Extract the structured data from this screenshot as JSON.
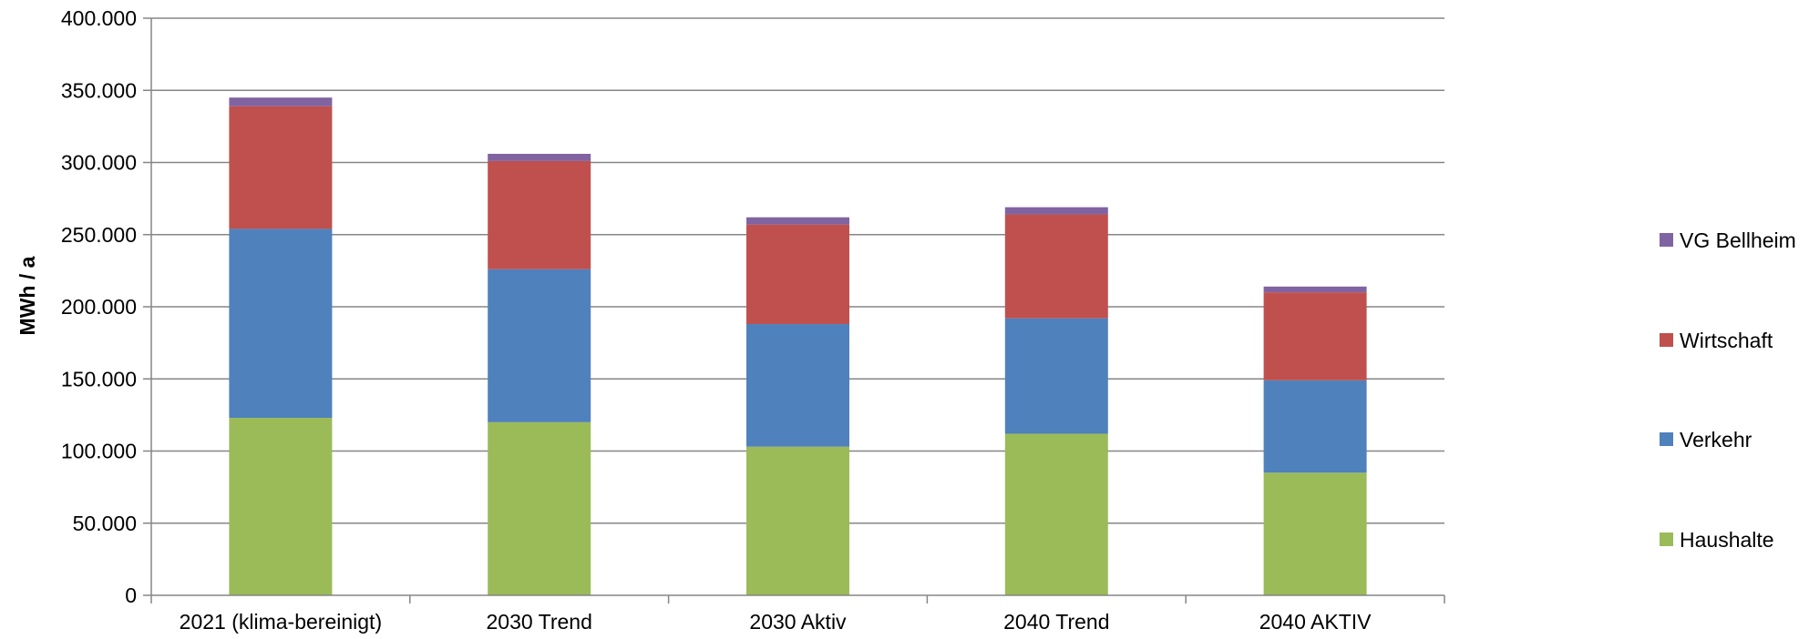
{
  "chart_data": {
    "type": "bar",
    "stacked": true,
    "ylabel": "MWh / a",
    "xlabel": "",
    "ylim": [
      0,
      400000
    ],
    "y_ticks": [
      0,
      50000,
      100000,
      150000,
      200000,
      250000,
      300000,
      350000,
      400000
    ],
    "y_tick_labels": [
      "0",
      "50.000",
      "100.000",
      "150.000",
      "200.000",
      "250.000",
      "300.000",
      "350.000",
      "400.000"
    ],
    "grid": true,
    "legend_position": "right",
    "categories": [
      "2021 (klima-bereinigt)",
      "2030 Trend",
      "2030 Aktiv",
      "2040 Trend",
      "2040 AKTIV"
    ],
    "series": [
      {
        "name": "Haushalte",
        "color": "#9BBB59",
        "values": [
          123000,
          120000,
          103000,
          112000,
          85000
        ]
      },
      {
        "name": "Verkehr",
        "color": "#4F81BD",
        "values": [
          131000,
          106000,
          85000,
          80000,
          64000
        ]
      },
      {
        "name": "Wirtschaft",
        "color": "#C0504D",
        "values": [
          85000,
          75000,
          69000,
          72000,
          61000
        ]
      },
      {
        "name": "VG Bellheim",
        "color": "#8064A2",
        "values": [
          6000,
          5000,
          5000,
          5000,
          4000
        ]
      }
    ]
  }
}
